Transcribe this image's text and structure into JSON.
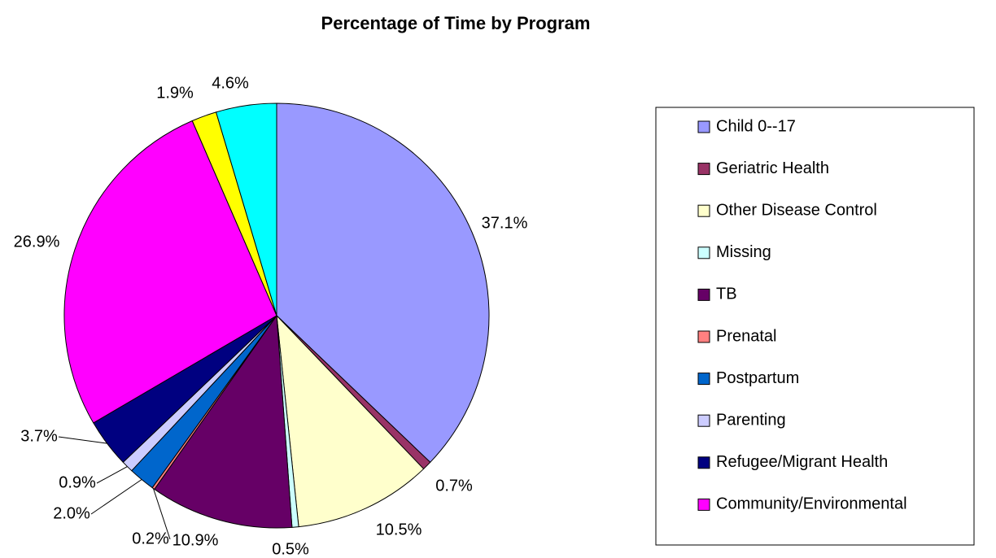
{
  "chart_data": {
    "type": "pie",
    "title": "Percentage of Time by Program",
    "categories": [
      "Child 0--17",
      "Geriatric Health",
      "Other Disease Control",
      "Missing",
      "TB",
      "Prenatal",
      "Postpartum",
      "Parenting",
      "Refugee/Migrant Health",
      "Community/Environmental",
      null,
      null
    ],
    "values": [
      37.1,
      0.7,
      10.5,
      0.5,
      10.9,
      0.2,
      2.0,
      0.9,
      3.7,
      26.9,
      1.9,
      4.6
    ],
    "value_labels": [
      "37.1%",
      "0.7%",
      "10.5%",
      "0.5%",
      "10.9%",
      "0.2%",
      "2.0%",
      "0.9%",
      "3.7%",
      "26.9%",
      "1.9%",
      "4.6%"
    ],
    "colors": [
      "#9999ff",
      "#993366",
      "#ffffcc",
      "#ccffff",
      "#660066",
      "#ff8080",
      "#0066cc",
      "#ccccff",
      "#000080",
      "#ff00ff",
      "#ffff00",
      "#00ffff"
    ],
    "legend": "right"
  }
}
